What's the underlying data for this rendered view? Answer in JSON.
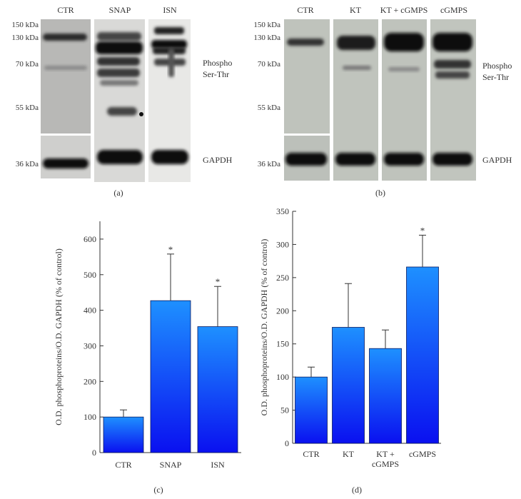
{
  "blot_a": {
    "lanes": [
      "CTR",
      "SNAP",
      "ISN"
    ],
    "kda": [
      "150 kDa",
      "130 kDa",
      "70 kDa",
      "55 kDa",
      "36 kDa"
    ],
    "phospho_line1": "Phospho",
    "phospho_line2": "Ser-Thr",
    "gapdh": "GAPDH",
    "panel": "(a)"
  },
  "blot_b": {
    "lanes": [
      "CTR",
      "KT",
      "KT + cGMPS",
      "cGMPS"
    ],
    "kda": [
      "150 kDa",
      "130 kDa",
      "70 kDa",
      "55 kDa",
      "36 kDa"
    ],
    "phospho_line1": "Phospho",
    "phospho_line2": "Ser-Thr",
    "gapdh": "GAPDH",
    "panel": "(b)"
  },
  "chart_data": [
    {
      "type": "bar",
      "panel": "(c)",
      "ylabel": "O.D. phosphoproteins/O.D. GAPDH (% of control)",
      "ylim": [
        0,
        650
      ],
      "yticks": [
        0,
        100,
        200,
        300,
        400,
        500,
        600
      ],
      "categories": [
        "CTR",
        "SNAP",
        "ISN"
      ],
      "values": [
        100,
        427,
        354
      ],
      "errors": [
        20,
        131,
        113
      ],
      "significance": [
        "",
        "*",
        "*"
      ],
      "bar_color_top": "#1e90ff",
      "bar_color_bottom": "#0a10f0"
    },
    {
      "type": "bar",
      "panel": "(d)",
      "ylabel": "O.D. phosphoproteins/O.D. GAPDH (% of control)",
      "ylim": [
        0,
        350
      ],
      "yticks": [
        0,
        50,
        100,
        150,
        200,
        250,
        300,
        350
      ],
      "categories": [
        "CTR",
        "KT",
        "KT +\ncGMPS",
        "cGMPS"
      ],
      "values": [
        100,
        175,
        143,
        266
      ],
      "errors": [
        15,
        66,
        28,
        48
      ],
      "significance": [
        "",
        "",
        "",
        "*"
      ],
      "bar_color_top": "#1e90ff",
      "bar_color_bottom": "#0a10f0"
    }
  ]
}
